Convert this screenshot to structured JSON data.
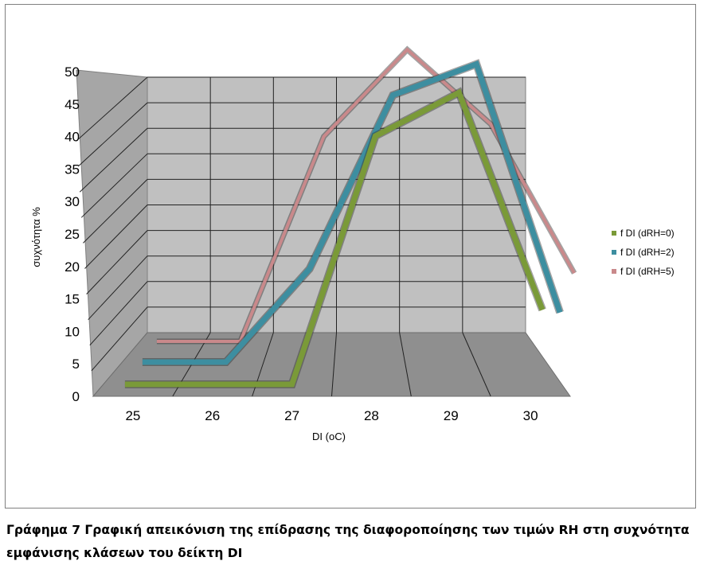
{
  "caption": "Γράφημα 7 Γραφική απεικόνιση της επίδρασης της διαφοροποίησης των τιμών RH στη συχνότητα εμφάνισης κλάσεων του δείκτη DI",
  "chart_data": {
    "type": "line",
    "style": "3d-ribbon",
    "xlabel": "DI (oC)",
    "ylabel": "συχνότητα %",
    "categories": [
      "25",
      "26",
      "27",
      "28",
      "29",
      "30"
    ],
    "ylim": [
      0,
      50
    ],
    "yticks": [
      0,
      5,
      10,
      15,
      20,
      25,
      30,
      35,
      40,
      45,
      50
    ],
    "grid": true,
    "legend_position": "right",
    "series": [
      {
        "name": "f DI (dRH=0)",
        "color": "#7a9a38",
        "values": [
          0,
          0,
          0,
          40,
          47,
          12
        ]
      },
      {
        "name": "f DI (dRH=2)",
        "color": "#3d8ea0",
        "values": [
          0,
          0,
          15,
          43,
          48,
          8
        ]
      },
      {
        "name": "f DI (dRH=5)",
        "color": "#c9898b",
        "values": [
          0,
          0,
          33,
          47,
          35,
          11
        ]
      }
    ]
  }
}
